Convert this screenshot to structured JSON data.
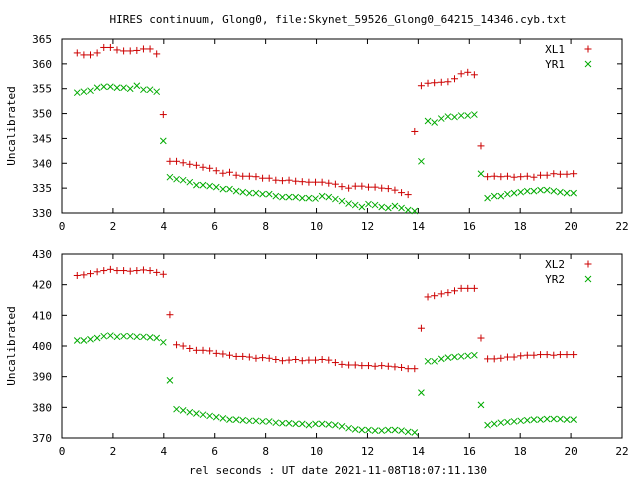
{
  "title": "HIRES continuum, Glong0, file:Skynet_59526_Glong0_64215_14346.cyb.txt",
  "xlabel": "rel seconds : UT date 2021-11-08T18:07:11.130",
  "colors": {
    "red": "#cc0000",
    "green": "#00aa00",
    "axis": "#000000"
  },
  "chart_data": [
    {
      "type": "scatter",
      "ylabel": "Uncalibrated",
      "xlim": [
        0,
        22
      ],
      "ylim": [
        330,
        365
      ],
      "xticks": [
        0,
        2,
        4,
        6,
        8,
        10,
        12,
        14,
        16,
        18,
        20,
        22
      ],
      "yticks": [
        330,
        335,
        340,
        345,
        350,
        355,
        360,
        365
      ],
      "legend_position": "top-right",
      "series": [
        {
          "name": "XL1",
          "marker": "plus",
          "color": "#cc0000",
          "x": [
            0.6,
            0.86,
            1.12,
            1.38,
            1.64,
            1.9,
            2.16,
            2.42,
            2.68,
            2.94,
            3.2,
            3.46,
            3.72,
            3.98,
            4.24,
            4.5,
            4.76,
            5.02,
            5.28,
            5.54,
            5.8,
            6.06,
            6.32,
            6.58,
            6.84,
            7.1,
            7.36,
            7.62,
            7.88,
            8.14,
            8.4,
            8.66,
            8.92,
            9.18,
            9.44,
            9.7,
            9.96,
            10.22,
            10.48,
            10.74,
            11.0,
            11.26,
            11.52,
            11.78,
            12.04,
            12.3,
            12.56,
            12.82,
            13.08,
            13.34,
            13.6,
            13.86,
            14.12,
            14.38,
            14.64,
            14.9,
            15.16,
            15.42,
            15.68,
            15.94,
            16.2,
            16.46,
            16.72,
            16.98,
            17.24,
            17.5,
            17.76,
            18.02,
            18.28,
            18.54,
            18.8,
            19.06,
            19.32,
            19.58,
            19.84,
            20.1
          ],
          "y": [
            362.2,
            361.8,
            361.8,
            362.2,
            363.3,
            363.3,
            362.8,
            362.6,
            362.6,
            362.7,
            363.0,
            363.0,
            362.0,
            349.8,
            340.4,
            340.4,
            340.1,
            339.8,
            339.6,
            339.2,
            339.0,
            338.5,
            338.0,
            338.2,
            337.6,
            337.4,
            337.4,
            337.3,
            337.0,
            337.0,
            336.6,
            336.5,
            336.6,
            336.4,
            336.3,
            336.2,
            336.2,
            336.2,
            336.0,
            335.8,
            335.3,
            335.0,
            335.4,
            335.4,
            335.2,
            335.2,
            335.0,
            334.9,
            334.6,
            334.1,
            333.7,
            346.4,
            355.6,
            356.1,
            356.2,
            356.3,
            356.4,
            357.0,
            358.0,
            358.3,
            357.8,
            343.5,
            337.3,
            337.4,
            337.3,
            337.4,
            337.2,
            337.3,
            337.4,
            337.2,
            337.6,
            337.6,
            337.9,
            337.8,
            337.8,
            337.9
          ]
        },
        {
          "name": "YR1",
          "marker": "cross",
          "color": "#00aa00",
          "x": [
            0.6,
            0.86,
            1.12,
            1.38,
            1.64,
            1.9,
            2.16,
            2.42,
            2.68,
            2.94,
            3.2,
            3.46,
            3.72,
            3.98,
            4.24,
            4.5,
            4.76,
            5.02,
            5.28,
            5.54,
            5.8,
            6.06,
            6.32,
            6.58,
            6.84,
            7.1,
            7.36,
            7.62,
            7.88,
            8.14,
            8.4,
            8.66,
            8.92,
            9.18,
            9.44,
            9.7,
            9.96,
            10.22,
            10.48,
            10.74,
            11.0,
            11.26,
            11.52,
            11.78,
            12.04,
            12.3,
            12.56,
            12.82,
            13.08,
            13.34,
            13.6,
            13.86,
            14.12,
            14.38,
            14.64,
            14.9,
            15.16,
            15.42,
            15.68,
            15.94,
            16.2,
            16.46,
            16.72,
            16.98,
            17.24,
            17.5,
            17.76,
            18.02,
            18.28,
            18.54,
            18.8,
            19.06,
            19.32,
            19.58,
            19.84,
            20.1
          ],
          "y": [
            354.2,
            354.4,
            354.6,
            355.2,
            355.4,
            355.4,
            355.2,
            355.2,
            355.0,
            355.6,
            354.8,
            354.8,
            354.4,
            344.5,
            337.2,
            336.8,
            336.6,
            336.2,
            335.6,
            335.6,
            335.4,
            335.2,
            334.8,
            334.8,
            334.4,
            334.2,
            334.0,
            334.0,
            333.8,
            333.8,
            333.4,
            333.2,
            333.2,
            333.2,
            333.0,
            333.0,
            332.9,
            333.4,
            333.2,
            332.8,
            332.4,
            331.9,
            331.6,
            331.2,
            331.8,
            331.6,
            331.2,
            331.0,
            331.4,
            331.0,
            330.6,
            330.4,
            340.4,
            348.5,
            348.2,
            349.0,
            349.4,
            349.3,
            349.6,
            349.6,
            349.8,
            337.9,
            333.0,
            333.4,
            333.4,
            333.8,
            334.0,
            334.2,
            334.4,
            334.4,
            334.6,
            334.6,
            334.4,
            334.2,
            334.0,
            334.0
          ]
        }
      ]
    },
    {
      "type": "scatter",
      "ylabel": "Uncalibrated",
      "xlim": [
        0,
        22
      ],
      "ylim": [
        370,
        430
      ],
      "xticks": [
        0,
        2,
        4,
        6,
        8,
        10,
        12,
        14,
        16,
        18,
        20,
        22
      ],
      "yticks": [
        370,
        380,
        390,
        400,
        410,
        420,
        430
      ],
      "legend_position": "top-right",
      "series": [
        {
          "name": "XL2",
          "marker": "plus",
          "color": "#cc0000",
          "x": [
            0.6,
            0.86,
            1.12,
            1.38,
            1.64,
            1.9,
            2.16,
            2.42,
            2.68,
            2.94,
            3.2,
            3.46,
            3.72,
            3.98,
            4.24,
            4.5,
            4.76,
            5.02,
            5.28,
            5.54,
            5.8,
            6.06,
            6.32,
            6.58,
            6.84,
            7.1,
            7.36,
            7.62,
            7.88,
            8.14,
            8.4,
            8.66,
            8.92,
            9.18,
            9.44,
            9.7,
            9.96,
            10.22,
            10.48,
            10.74,
            11.0,
            11.26,
            11.52,
            11.78,
            12.04,
            12.3,
            12.56,
            12.82,
            13.08,
            13.34,
            13.6,
            13.86,
            14.12,
            14.38,
            14.64,
            14.9,
            15.16,
            15.42,
            15.68,
            15.94,
            16.2,
            16.46,
            16.72,
            16.98,
            17.24,
            17.5,
            17.76,
            18.02,
            18.28,
            18.54,
            18.8,
            19.06,
            19.32,
            19.58,
            19.84,
            20.1
          ],
          "y": [
            423.0,
            423.2,
            423.6,
            424.2,
            424.6,
            425.0,
            424.6,
            424.6,
            424.4,
            424.6,
            424.8,
            424.6,
            424.0,
            423.4,
            410.2,
            400.4,
            400.0,
            399.2,
            398.6,
            398.6,
            398.4,
            397.6,
            397.4,
            397.0,
            396.6,
            396.6,
            396.4,
            396.0,
            396.2,
            396.0,
            395.6,
            395.2,
            395.4,
            395.6,
            395.2,
            395.4,
            395.4,
            395.6,
            395.4,
            394.6,
            394.0,
            393.8,
            393.8,
            393.6,
            393.6,
            393.4,
            393.6,
            393.4,
            393.2,
            393.0,
            392.6,
            392.6,
            405.8,
            416.0,
            416.4,
            417.0,
            417.4,
            418.0,
            418.8,
            418.8,
            418.8,
            402.6,
            395.8,
            395.8,
            396.0,
            396.4,
            396.4,
            396.8,
            397.0,
            397.0,
            397.2,
            397.2,
            397.0,
            397.2,
            397.2,
            397.2
          ]
        },
        {
          "name": "YR2",
          "marker": "cross",
          "color": "#00aa00",
          "x": [
            0.6,
            0.86,
            1.12,
            1.38,
            1.64,
            1.9,
            2.16,
            2.42,
            2.68,
            2.94,
            3.2,
            3.46,
            3.72,
            3.98,
            4.24,
            4.5,
            4.76,
            5.02,
            5.28,
            5.54,
            5.8,
            6.06,
            6.32,
            6.58,
            6.84,
            7.1,
            7.36,
            7.62,
            7.88,
            8.14,
            8.4,
            8.66,
            8.92,
            9.18,
            9.44,
            9.7,
            9.96,
            10.22,
            10.48,
            10.74,
            11.0,
            11.26,
            11.52,
            11.78,
            12.04,
            12.3,
            12.56,
            12.82,
            13.08,
            13.34,
            13.6,
            13.86,
            14.12,
            14.38,
            14.64,
            14.9,
            15.16,
            15.42,
            15.68,
            15.94,
            16.2,
            16.46,
            16.72,
            16.98,
            17.24,
            17.5,
            17.76,
            18.02,
            18.28,
            18.54,
            18.8,
            19.06,
            19.32,
            19.58,
            19.84,
            20.1
          ],
          "y": [
            401.8,
            401.8,
            402.2,
            402.6,
            403.2,
            403.4,
            403.0,
            403.2,
            403.2,
            403.0,
            403.0,
            402.8,
            402.6,
            401.2,
            388.8,
            379.4,
            379.0,
            378.4,
            378.0,
            377.6,
            377.2,
            376.8,
            376.4,
            376.0,
            376.0,
            375.8,
            375.6,
            375.6,
            375.4,
            375.4,
            375.0,
            374.8,
            374.8,
            374.6,
            374.6,
            374.2,
            374.6,
            374.6,
            374.4,
            374.2,
            373.8,
            373.2,
            372.8,
            372.6,
            372.6,
            372.4,
            372.4,
            372.6,
            372.6,
            372.4,
            372.0,
            371.8,
            384.8,
            395.0,
            395.0,
            395.8,
            396.2,
            396.4,
            396.6,
            396.8,
            397.0,
            380.8,
            374.2,
            374.6,
            375.0,
            375.2,
            375.4,
            375.6,
            375.8,
            376.0,
            376.0,
            376.2,
            376.2,
            376.2,
            376.0,
            376.0
          ]
        }
      ]
    }
  ]
}
